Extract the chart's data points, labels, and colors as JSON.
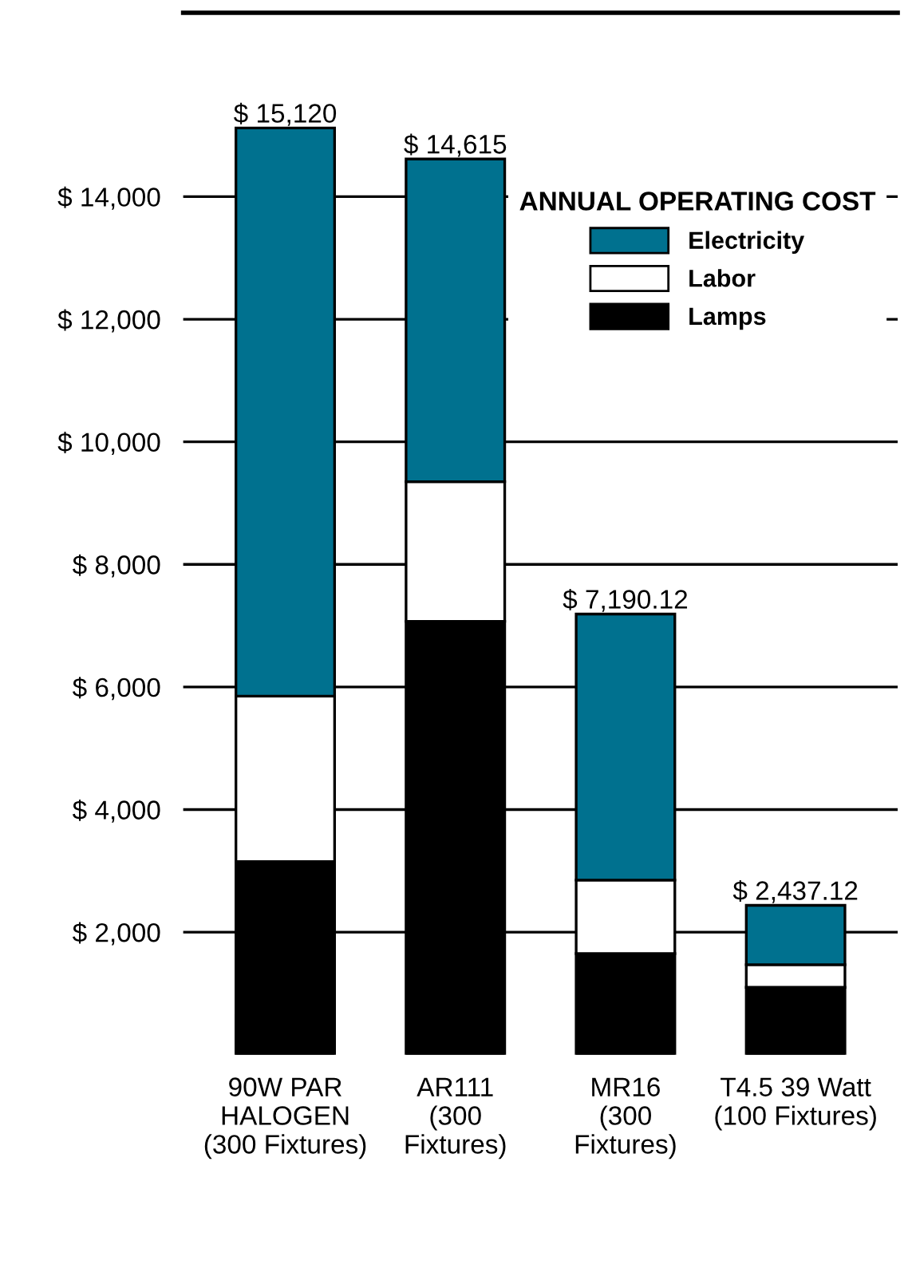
{
  "chart_data": {
    "type": "bar",
    "stacked": true,
    "legend_title": "ANNUAL OPERATING COST",
    "categories": [
      "90W PAR\nHALOGEN\n(300 Fixtures)",
      "AR111\n(300\nFixtures)",
      "MR16\n(300\nFixtures)",
      "T4.5 39 Watt\n(100 Fixtures)"
    ],
    "series": [
      {
        "name": "Lamps",
        "color": "#000000",
        "values": [
          3150,
          7070,
          1650,
          1100
        ]
      },
      {
        "name": "Labor",
        "color": "#ffffff",
        "values": [
          2700,
          2280,
          1200,
          370
        ]
      },
      {
        "name": "Electricity",
        "color": "#00718f",
        "values": [
          9270,
          5265,
          4340.12,
          967.12
        ]
      }
    ],
    "totals": [
      "$ 15,120",
      "$ 14,615",
      "$ 7,190.12",
      "$ 2,437.12"
    ],
    "ylim": [
      0,
      17000
    ],
    "yticks": [
      {
        "value": 2000,
        "label": "$ 2,000"
      },
      {
        "value": 4000,
        "label": "$ 4,000"
      },
      {
        "value": 6000,
        "label": "$ 6,000"
      },
      {
        "value": 8000,
        "label": "$ 8,000"
      },
      {
        "value": 10000,
        "label": "$ 10,000"
      },
      {
        "value": 12000,
        "label": "$ 12,000"
      },
      {
        "value": 14000,
        "label": "$ 14,000"
      }
    ],
    "grid": "y",
    "legend": "top right"
  }
}
